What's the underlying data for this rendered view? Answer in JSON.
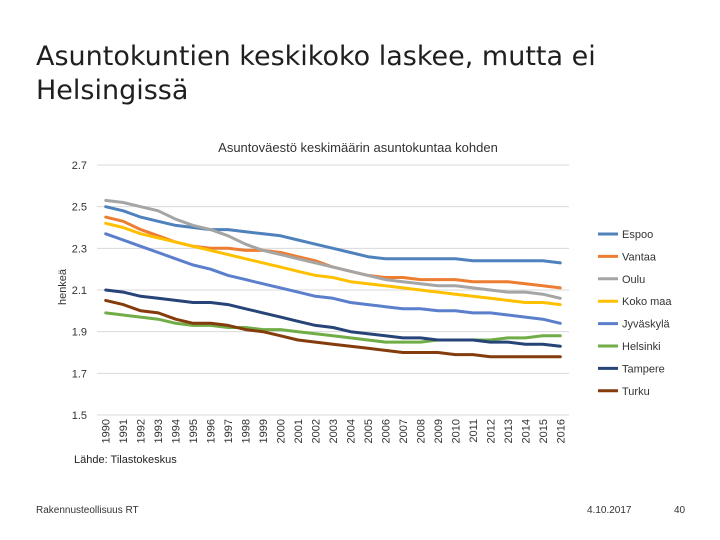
{
  "slide": {
    "title": "Asuntokuntien keskikoko laskee, mutta ei Helsingissä",
    "source": "Lähde: Tilastokeskus",
    "footer_left": "Rakennusteollisuus RT",
    "footer_date": "4.10.2017",
    "page_number": "40"
  },
  "chart_data": {
    "type": "line",
    "title": "Asuntoväestö keskimäärin asuntokuntaa kohden",
    "xlabel": "",
    "ylabel": "henkeä",
    "ylim": [
      1.5,
      2.7
    ],
    "yticks": [
      "1.5",
      "1.7",
      "1.9",
      "2.1",
      "2.3",
      "2.5",
      "2.7"
    ],
    "grid": true,
    "legend_position": "right",
    "categories": [
      "1990",
      "1991",
      "1992",
      "1993",
      "1994",
      "1995",
      "1996",
      "1997",
      "1998",
      "1999",
      "2000",
      "2001",
      "2002",
      "2003",
      "2004",
      "2005",
      "2006",
      "2007",
      "2008",
      "2009",
      "2010",
      "2011",
      "2012",
      "2013",
      "2014",
      "2015",
      "2016"
    ],
    "series": [
      {
        "name": "Espoo",
        "color": "#4f81bd",
        "values": [
          2.5,
          2.48,
          2.45,
          2.43,
          2.41,
          2.4,
          2.39,
          2.39,
          2.38,
          2.37,
          2.36,
          2.34,
          2.32,
          2.3,
          2.28,
          2.26,
          2.25,
          2.25,
          2.25,
          2.25,
          2.25,
          2.24,
          2.24,
          2.24,
          2.24,
          2.24,
          2.23
        ]
      },
      {
        "name": "Vantaa",
        "color": "#ed7d31",
        "values": [
          2.45,
          2.43,
          2.39,
          2.36,
          2.33,
          2.31,
          2.3,
          2.3,
          2.29,
          2.29,
          2.28,
          2.26,
          2.24,
          2.21,
          2.19,
          2.17,
          2.16,
          2.16,
          2.15,
          2.15,
          2.15,
          2.14,
          2.14,
          2.14,
          2.13,
          2.12,
          2.11
        ]
      },
      {
        "name": "Oulu",
        "color": "#a5a5a5",
        "values": [
          2.53,
          2.52,
          2.5,
          2.48,
          2.44,
          2.41,
          2.39,
          2.36,
          2.32,
          2.29,
          2.27,
          2.25,
          2.23,
          2.21,
          2.19,
          2.17,
          2.15,
          2.14,
          2.13,
          2.12,
          2.12,
          2.11,
          2.1,
          2.09,
          2.09,
          2.08,
          2.06
        ]
      },
      {
        "name": "Koko maa",
        "color": "#ffc000",
        "values": [
          2.42,
          2.4,
          2.37,
          2.35,
          2.33,
          2.31,
          2.29,
          2.27,
          2.25,
          2.23,
          2.21,
          2.19,
          2.17,
          2.16,
          2.14,
          2.13,
          2.12,
          2.11,
          2.1,
          2.09,
          2.08,
          2.07,
          2.06,
          2.05,
          2.04,
          2.04,
          2.03
        ]
      },
      {
        "name": "Jyväskylä",
        "color": "#5b7fcc",
        "values": [
          2.37,
          2.34,
          2.31,
          2.28,
          2.25,
          2.22,
          2.2,
          2.17,
          2.15,
          2.13,
          2.11,
          2.09,
          2.07,
          2.06,
          2.04,
          2.03,
          2.02,
          2.01,
          2.01,
          2.0,
          2.0,
          1.99,
          1.99,
          1.98,
          1.97,
          1.96,
          1.94
        ]
      },
      {
        "name": "Helsinki",
        "color": "#70ad47",
        "values": [
          1.99,
          1.98,
          1.97,
          1.96,
          1.94,
          1.93,
          1.93,
          1.92,
          1.92,
          1.91,
          1.91,
          1.9,
          1.89,
          1.88,
          1.87,
          1.86,
          1.85,
          1.85,
          1.85,
          1.86,
          1.86,
          1.86,
          1.86,
          1.87,
          1.87,
          1.88,
          1.88
        ]
      },
      {
        "name": "Tampere",
        "color": "#264478",
        "values": [
          2.1,
          2.09,
          2.07,
          2.06,
          2.05,
          2.04,
          2.04,
          2.03,
          2.01,
          1.99,
          1.97,
          1.95,
          1.93,
          1.92,
          1.9,
          1.89,
          1.88,
          1.87,
          1.87,
          1.86,
          1.86,
          1.86,
          1.85,
          1.85,
          1.84,
          1.84,
          1.83
        ]
      },
      {
        "name": "Turku",
        "color": "#843c0c",
        "values": [
          2.05,
          2.03,
          2.0,
          1.99,
          1.96,
          1.94,
          1.94,
          1.93,
          1.91,
          1.9,
          1.88,
          1.86,
          1.85,
          1.84,
          1.83,
          1.82,
          1.81,
          1.8,
          1.8,
          1.8,
          1.79,
          1.79,
          1.78,
          1.78,
          1.78,
          1.78,
          1.78
        ]
      }
    ]
  }
}
